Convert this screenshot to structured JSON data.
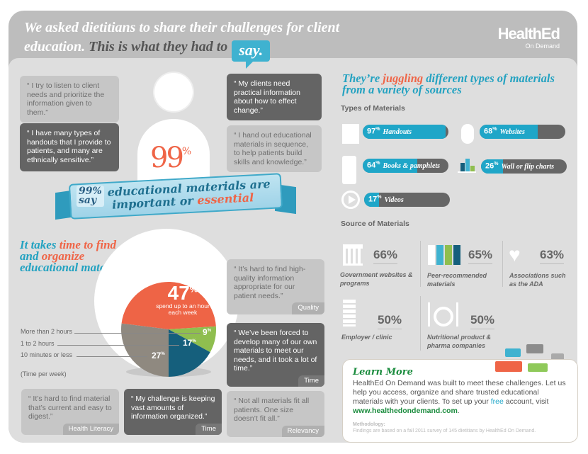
{
  "header": {
    "title_part1": "We asked dietitians to share their challenges for client education.",
    "title_part2": "This is what they had to",
    "say_bubble": "say.",
    "logo_line1": "HealthEd",
    "logo_line2": "On Demand"
  },
  "quotes_top": [
    {
      "text": "“ I try to listen to client needs and prioritize the information given to them.”"
    },
    {
      "text": "“ I have many types of handouts that I provide to patients, and many are ethnically sensitive.”"
    },
    {
      "text": "“ My clients need practical information about how to effect change.”"
    },
    {
      "text": "“ I hand out educational materials in sequence, to help patients build skills and knowledge.”"
    }
  ],
  "hero": {
    "value": "99",
    "unit": "%",
    "ribbon_pct": "99%",
    "ribbon_say": "say",
    "ribbon_line1": "educational materials are",
    "ribbon_line2a": "important or",
    "ribbon_line2b": "essential"
  },
  "time_section": {
    "title_a": "It takes",
    "title_b": "time to",
    "title_c": "find",
    "title_d": "and",
    "title_e": "organize",
    "title_f": "educational materials",
    "legend": [
      "More than 2 hours",
      "1 to 2 hours",
      "10 minutes or less"
    ],
    "legend_note": "(Time per week)",
    "main_pct": "47",
    "main_caption": "spend up to an hour each week",
    "labels": [
      "9",
      "17",
      "27"
    ]
  },
  "chart_data": {
    "type": "pie",
    "slices": [
      {
        "label": "Up to an hour",
        "value": 47,
        "color": "#ee6446"
      },
      {
        "label": "More than 2 hours",
        "value": 9,
        "color": "#8fbe4f"
      },
      {
        "label": "1 to 2 hours",
        "value": 17,
        "color": "#155f7c"
      },
      {
        "label": "10 minutes or less",
        "value": 27,
        "color": "#8f8980"
      }
    ]
  },
  "quotes_mid": [
    {
      "text": "“ It’s hard to find high-quality information appropriate for our patient needs.”",
      "tag": "Quality"
    },
    {
      "text": "“ We’ve been forced to develop many of our own materials to meet our needs, and it took a lot of time.”",
      "tag": "Time"
    },
    {
      "text": "“ It’s hard to find material that’s current and easy to digest.”",
      "tag": "Health Literacy"
    },
    {
      "text": "“ My challenge is keeping vast amounts of information organized.”",
      "tag": "Time"
    },
    {
      "text": "“ Not all materials fit all patients. One size doesn’t fit all.”",
      "tag": "Relevancy"
    }
  ],
  "materials": {
    "heading_a": "They’re",
    "heading_b": "juggling",
    "heading_c": "different types of materials from a variety of sources",
    "types_title": "Types of Materials",
    "types": [
      {
        "pct": 97,
        "label": "Handouts",
        "icon": "document-icon"
      },
      {
        "pct": 68,
        "label": "Websites",
        "icon": "mouse-icon"
      },
      {
        "pct": 64,
        "label": "Books & pamphlets",
        "icon": "book-icon"
      },
      {
        "pct": 26,
        "label": "Wall or flip charts",
        "icon": "bar-chart-icon"
      },
      {
        "pct": 17,
        "label": "Videos",
        "icon": "play-icon"
      }
    ],
    "sources_title": "Source of Materials",
    "sources": [
      {
        "pct": "66%",
        "label": "Government websites & programs",
        "icon": "government-building-icon"
      },
      {
        "pct": "65%",
        "label": "Peer-recommended materials",
        "icon": "people-icon"
      },
      {
        "pct": "63%",
        "label": "Associations such as the ADA",
        "icon": "heart-check-icon"
      },
      {
        "pct": "50%",
        "label": "Employer / clinic",
        "icon": "buildings-icon"
      },
      {
        "pct": "50%",
        "label": "Nutritional product & pharma companies",
        "icon": "plate-cutlery-icon"
      }
    ]
  },
  "learn_more": {
    "title": "Learn More",
    "body": "HealthEd On Demand was built to meet these challenges. Let us help you access, organize and share trusted educational materials with your clients. To set up your",
    "free": "free",
    "body2": "account, visit",
    "url": "www.healthedondemand.com",
    "period": ".",
    "method_title": "Methodology:",
    "method_text": "Findings are based on a fall 2011 survey of 145 dietitians by HealthEd On Demand."
  },
  "colors": {
    "teal": "#23a2c1",
    "orange": "#ef6547",
    "green": "#1b8c3e",
    "bar_fill": "#1fa6c8"
  }
}
